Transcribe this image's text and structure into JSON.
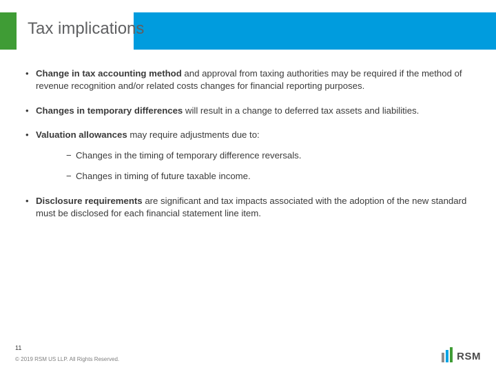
{
  "colors": {
    "green": "#3f9c35",
    "blue": "#009cde",
    "title_text": "#5f6062",
    "body_text": "#3a3a3a",
    "footer_text": "#808080",
    "logo_bar_grey": "#8e8e8e",
    "logo_bar_blue": "#00a4e4",
    "logo_bar_green": "#3f9c35",
    "background": "#ffffff"
  },
  "typography": {
    "title_fontsize": 24,
    "body_fontsize": 13.2,
    "footer_fontsize": 8,
    "pagenum_fontsize": 9,
    "font_family": "Arial"
  },
  "title": "Tax implications",
  "bullets": [
    {
      "bold": "Change in tax accounting method",
      "rest": " and approval from taxing authorities may be required if the method of revenue recognition and/or related costs changes for financial reporting purposes."
    },
    {
      "bold": "Changes in temporary differences",
      "rest": " will result in a change to deferred tax assets and liabilities."
    },
    {
      "bold": "Valuation allowances",
      "rest": " may require adjustments due to:",
      "sub": [
        "Changes in the timing of temporary difference reversals.",
        "Changes in timing of future taxable income."
      ]
    },
    {
      "bold": "Disclosure requirements",
      "rest": " are significant and tax impacts associated with the adoption of the new standard must be disclosed for each financial statement line item."
    }
  ],
  "page_number": "11",
  "footer": "© 2019 RSM US LLP. All Rights Reserved.",
  "logo_text": "RSM"
}
